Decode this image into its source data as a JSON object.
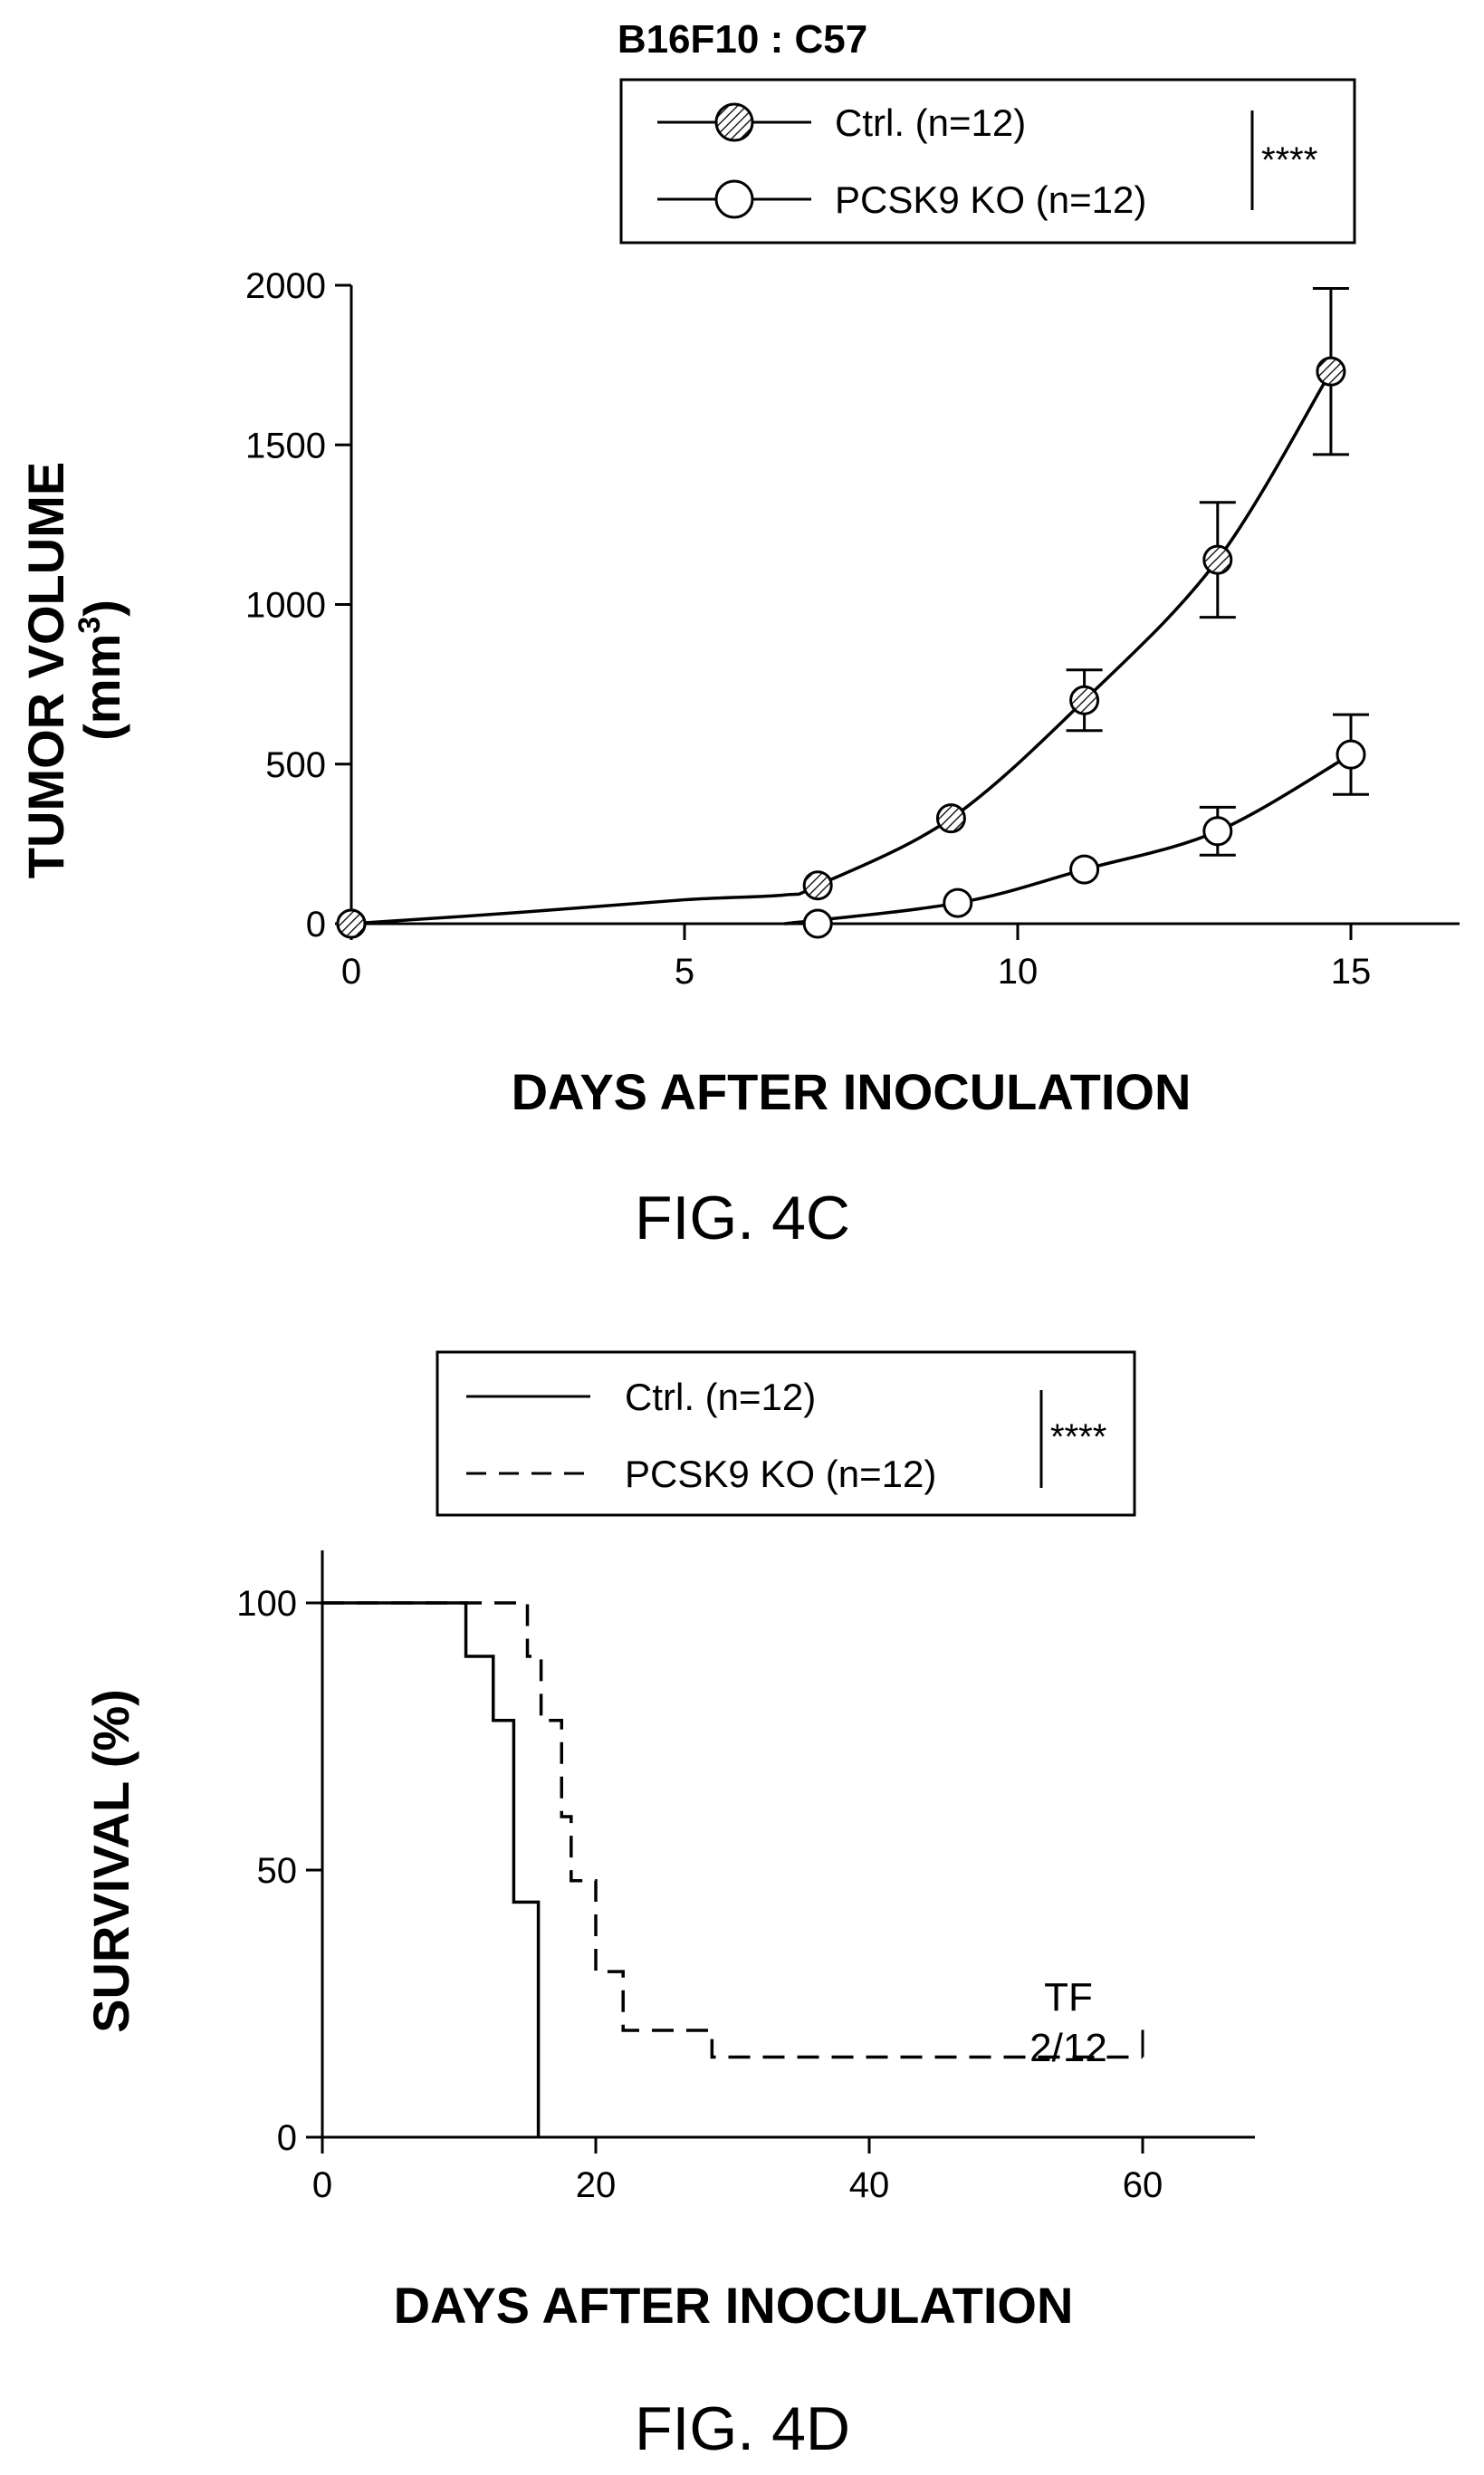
{
  "chart_data": [
    {
      "type": "line",
      "title": "B16F10 : C57",
      "xlabel": "DAYS AFTER INOCULATION",
      "ylabel_line1": "TUMOR VOLUME",
      "ylabel_line2": "(mm",
      "ylabel_sup": "3",
      "ylabel_close": ")",
      "xlim": [
        0,
        17
      ],
      "ylim": [
        0,
        2000
      ],
      "xticks": [
        0,
        5,
        10,
        15
      ],
      "xtick_labels": [
        "0",
        "5",
        "10",
        "15"
      ],
      "yticks": [
        0,
        500,
        1000,
        1500,
        2000
      ],
      "ytick_labels": [
        "0",
        "500",
        "1000",
        "1500",
        "2000"
      ],
      "grid": false,
      "legend_position": "top-right",
      "significance": "****",
      "caption": "FIG. 4C",
      "series": [
        {
          "name": "Ctrl. (n=12)",
          "marker": "hatched-circle",
          "points": [
            {
              "x": 0,
              "y": 0
            },
            {
              "x": 7,
              "y": 120
            },
            {
              "x": 9,
              "y": 330
            },
            {
              "x": 11,
              "y": 700,
              "err": 95
            },
            {
              "x": 13,
              "y": 1140,
              "err": 180
            },
            {
              "x": 14.7,
              "y": 1730,
              "err": 260
            }
          ]
        },
        {
          "name": "PCSK9 KO (n=12)",
          "marker": "open-circle",
          "points": [
            {
              "x": 0,
              "y": 0
            },
            {
              "x": 7,
              "y": 0
            },
            {
              "x": 9.1,
              "y": 65
            },
            {
              "x": 11,
              "y": 170
            },
            {
              "x": 13,
              "y": 290,
              "err": 75
            },
            {
              "x": 15,
              "y": 530,
              "err": 125
            }
          ]
        }
      ]
    },
    {
      "type": "line",
      "subtype": "survival-step",
      "xlabel": "DAYS AFTER INOCULATION",
      "ylabel": "SURVIVAL (%)",
      "xlim": [
        0,
        68
      ],
      "ylim": [
        0,
        110
      ],
      "xticks": [
        0,
        20,
        40,
        60
      ],
      "xtick_labels": [
        "0",
        "20",
        "40",
        "60"
      ],
      "yticks": [
        0,
        50,
        100
      ],
      "ytick_labels": [
        "0",
        "50",
        "100"
      ],
      "grid": false,
      "legend_position": "top",
      "significance": "****",
      "annotation_line1": "TF",
      "annotation_line2": "2/12",
      "caption": "FIG. 4D",
      "series": [
        {
          "name": "Ctrl. (n=12)",
          "dash": "solid",
          "steps": [
            [
              0,
              100
            ],
            [
              10.5,
              90
            ],
            [
              12.5,
              78
            ],
            [
              14,
              44
            ],
            [
              15.8,
              0
            ]
          ]
        },
        {
          "name": "PCSK9 KO (n=12)",
          "dash": "dashed",
          "steps": [
            [
              0,
              100
            ],
            [
              15,
              90
            ],
            [
              16,
              78
            ],
            [
              17.5,
              60
            ],
            [
              18.2,
              48
            ],
            [
              20,
              31
            ],
            [
              22,
              20
            ],
            [
              28.5,
              15
            ],
            [
              60,
              15
            ]
          ],
          "end_x": 60,
          "censor_tick_x": 60
        }
      ]
    }
  ]
}
